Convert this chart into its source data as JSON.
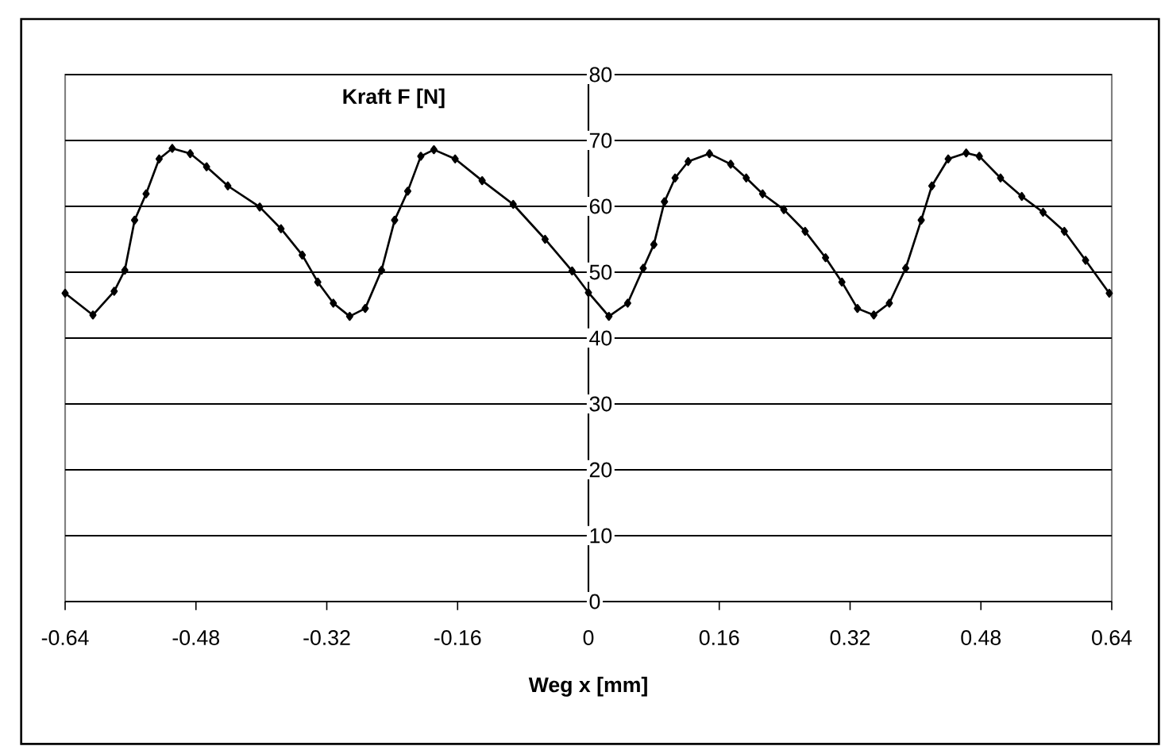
{
  "chart_data": {
    "type": "line",
    "xlabel": "Weg x [mm]",
    "ylabel": "Kraft F [N]",
    "xlim": [
      -0.64,
      0.64
    ],
    "ylim": [
      0,
      80
    ],
    "xticks": [
      -0.64,
      -0.48,
      -0.32,
      -0.16,
      0,
      0.16,
      0.32,
      0.48,
      0.64
    ],
    "yticks": [
      0,
      10,
      20,
      30,
      40,
      50,
      60,
      70,
      80
    ],
    "grid": "y",
    "marker": "diamond",
    "line_style": "solid",
    "series": [
      {
        "color": "#000000",
        "x": [
          -0.64,
          -0.606,
          -0.58,
          -0.567,
          -0.555,
          -0.541,
          -0.525,
          -0.509,
          -0.487,
          -0.467,
          -0.441,
          -0.402,
          -0.376,
          -0.35,
          -0.331,
          -0.312,
          -0.292,
          -0.273,
          -0.253,
          -0.237,
          -0.221,
          -0.205,
          -0.189,
          -0.163,
          -0.13,
          -0.092,
          -0.053,
          -0.02,
          0.0,
          0.025,
          0.048,
          0.067,
          0.08,
          0.093,
          0.106,
          0.122,
          0.148,
          0.174,
          0.193,
          0.213,
          0.239,
          0.265,
          0.29,
          0.31,
          0.329,
          0.349,
          0.368,
          0.388,
          0.407,
          0.42,
          0.44,
          0.462,
          0.478,
          0.504,
          0.53,
          0.556,
          0.582,
          0.608,
          0.637
        ],
        "values": [
          46.8,
          43.5,
          47.1,
          50.3,
          57.9,
          61.9,
          67.2,
          68.8,
          68.0,
          66.0,
          63.1,
          59.9,
          56.6,
          52.6,
          48.5,
          45.3,
          43.3,
          44.5,
          50.3,
          57.9,
          62.3,
          67.6,
          68.6,
          67.2,
          63.9,
          60.3,
          55.0,
          50.2,
          46.9,
          43.3,
          45.3,
          50.6,
          54.2,
          60.7,
          64.3,
          66.8,
          68.0,
          66.4,
          64.3,
          61.9,
          59.5,
          56.2,
          52.2,
          48.5,
          44.5,
          43.5,
          45.3,
          50.6,
          57.9,
          63.1,
          67.2,
          68.1,
          67.6,
          64.3,
          61.5,
          59.1,
          56.2,
          51.8,
          46.8
        ]
      }
    ]
  }
}
